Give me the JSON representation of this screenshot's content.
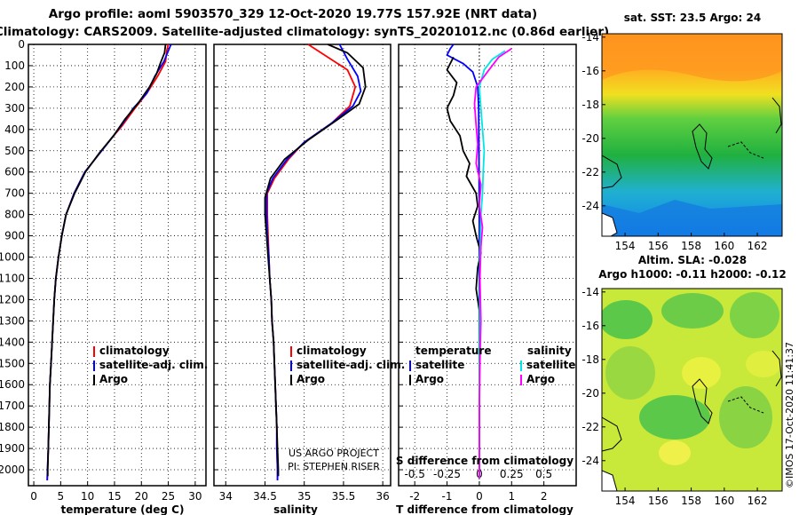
{
  "header": {
    "line1": "Argo profile: aoml 5903570_329 12-Oct-2020 19.77S 157.92E (NRT data)",
    "line2": "Climatology: CARS2009. Satellite-adjusted climatology: synTS_20201012.nc (0.86d earlier)"
  },
  "credit": "©IMOS 17-Oct-2020 11:41:37",
  "project": {
    "line1": "US ARGO PROJECT",
    "line2": "PI: STEPHEN RISER"
  },
  "colors": {
    "climatology": "#ff0000",
    "satellite": "#0000ff",
    "argo": "#000000",
    "sat_salinity": "#00e5e5",
    "argo_salinity": "#ff00ff"
  },
  "chart_data": [
    {
      "type": "line",
      "xlabel": "temperature (deg C)",
      "xticks": [
        "0",
        "5",
        "10",
        "15",
        "20",
        "25",
        "30"
      ],
      "xlim": [
        -1,
        32
      ],
      "ylim": [
        2075,
        0
      ],
      "yticks": [
        "0",
        "100",
        "200",
        "300",
        "400",
        "500",
        "600",
        "700",
        "800",
        "900",
        "1000",
        "1100",
        "1200",
        "1300",
        "1400",
        "1500",
        "1600",
        "1700",
        "1800",
        "1900",
        "2000"
      ],
      "legend": [
        "climatology",
        "satellite-adj. clim.",
        "Argo"
      ],
      "series": [
        {
          "name": "climatology",
          "color": "#ff0000",
          "points": [
            [
              25.0,
              0
            ],
            [
              24.7,
              30
            ],
            [
              24.5,
              80
            ],
            [
              23.0,
              150
            ],
            [
              21.0,
              230
            ],
            [
              18.8,
              300
            ],
            [
              16.5,
              380
            ],
            [
              14.5,
              440
            ],
            [
              12.0,
              520
            ],
            [
              9.5,
              600
            ],
            [
              7.5,
              700
            ],
            [
              6.0,
              800
            ],
            [
              5.2,
              900
            ],
            [
              4.6,
              1000
            ],
            [
              4.1,
              1100
            ],
            [
              3.8,
              1200
            ],
            [
              3.6,
              1300
            ],
            [
              3.4,
              1400
            ],
            [
              3.2,
              1500
            ],
            [
              3.0,
              1600
            ],
            [
              2.9,
              1700
            ],
            [
              2.8,
              1800
            ],
            [
              2.7,
              1900
            ],
            [
              2.55,
              2000
            ],
            [
              2.5,
              2050
            ]
          ]
        },
        {
          "name": "satellite-adj. clim.",
          "color": "#0000ff",
          "points": [
            [
              25.5,
              0
            ],
            [
              25.0,
              30
            ],
            [
              24.2,
              80
            ],
            [
              22.5,
              150
            ],
            [
              21.0,
              230
            ],
            [
              18.5,
              300
            ],
            [
              16.3,
              380
            ],
            [
              14.5,
              440
            ],
            [
              12.0,
              520
            ],
            [
              9.5,
              600
            ],
            [
              7.5,
              700
            ],
            [
              6.0,
              800
            ],
            [
              5.2,
              900
            ],
            [
              4.6,
              1000
            ],
            [
              4.1,
              1100
            ],
            [
              3.8,
              1200
            ],
            [
              3.6,
              1300
            ],
            [
              3.4,
              1400
            ],
            [
              3.2,
              1500
            ],
            [
              3.0,
              1600
            ],
            [
              2.9,
              1700
            ],
            [
              2.8,
              1800
            ],
            [
              2.7,
              1900
            ],
            [
              2.55,
              2000
            ],
            [
              2.5,
              2050
            ]
          ]
        },
        {
          "name": "Argo",
          "color": "#000000",
          "points": [
            [
              24.5,
              0
            ],
            [
              24.3,
              40
            ],
            [
              23.5,
              90
            ],
            [
              22.8,
              140
            ],
            [
              21.5,
              200
            ],
            [
              19.3,
              280
            ],
            [
              17.0,
              350
            ],
            [
              14.8,
              430
            ],
            [
              12.2,
              510
            ],
            [
              9.6,
              600
            ],
            [
              7.6,
              700
            ],
            [
              6.0,
              800
            ],
            [
              5.2,
              900
            ],
            [
              4.6,
              1000
            ],
            [
              4.1,
              1100
            ],
            [
              3.8,
              1200
            ],
            [
              3.6,
              1300
            ],
            [
              3.4,
              1400
            ],
            [
              3.2,
              1500
            ],
            [
              3.0,
              1600
            ],
            [
              2.9,
              1700
            ],
            [
              2.8,
              1800
            ],
            [
              2.7,
              1900
            ],
            [
              2.6,
              2000
            ],
            [
              2.6,
              2030
            ]
          ]
        }
      ]
    },
    {
      "type": "line",
      "xlabel": "salinity",
      "xticks": [
        "34",
        "34.5",
        "35",
        "35.5",
        "36"
      ],
      "xlim": [
        33.85,
        36.1
      ],
      "ylim": [
        2075,
        0
      ],
      "legend": [
        "climatology",
        "satellite-adj. clim.",
        "Argo"
      ],
      "series": [
        {
          "name": "climatology",
          "color": "#ff0000",
          "points": [
            [
              35.05,
              0
            ],
            [
              35.3,
              60
            ],
            [
              35.55,
              120
            ],
            [
              35.65,
              200
            ],
            [
              35.58,
              290
            ],
            [
              35.35,
              370
            ],
            [
              35.0,
              460
            ],
            [
              34.8,
              540
            ],
            [
              34.62,
              630
            ],
            [
              34.53,
              700
            ],
            [
              34.53,
              800
            ],
            [
              34.54,
              900
            ],
            [
              34.55,
              1000
            ],
            [
              34.56,
              1100
            ],
            [
              34.58,
              1200
            ],
            [
              34.59,
              1300
            ],
            [
              34.61,
              1400
            ],
            [
              34.62,
              1500
            ],
            [
              34.63,
              1600
            ],
            [
              34.64,
              1700
            ],
            [
              34.65,
              1800
            ],
            [
              34.65,
              1900
            ],
            [
              34.66,
              2000
            ],
            [
              34.66,
              2050
            ]
          ]
        },
        {
          "name": "satellite-adj. clim.",
          "color": "#0000ff",
          "points": [
            [
              35.45,
              0
            ],
            [
              35.55,
              70
            ],
            [
              35.68,
              150
            ],
            [
              35.72,
              220
            ],
            [
              35.62,
              290
            ],
            [
              35.35,
              370
            ],
            [
              35.0,
              460
            ],
            [
              34.78,
              540
            ],
            [
              34.6,
              630
            ],
            [
              34.52,
              700
            ],
            [
              34.52,
              800
            ],
            [
              34.53,
              900
            ],
            [
              34.55,
              1000
            ],
            [
              34.56,
              1100
            ],
            [
              34.58,
              1200
            ],
            [
              34.59,
              1300
            ],
            [
              34.61,
              1400
            ],
            [
              34.62,
              1500
            ],
            [
              34.63,
              1600
            ],
            [
              34.64,
              1700
            ],
            [
              34.65,
              1800
            ],
            [
              34.65,
              1900
            ],
            [
              34.66,
              2000
            ],
            [
              34.66,
              2050
            ]
          ]
        },
        {
          "name": "Argo",
          "color": "#000000",
          "points": [
            [
              35.3,
              0
            ],
            [
              35.55,
              40
            ],
            [
              35.75,
              110
            ],
            [
              35.78,
              200
            ],
            [
              35.7,
              280
            ],
            [
              35.4,
              360
            ],
            [
              35.05,
              450
            ],
            [
              34.75,
              540
            ],
            [
              34.57,
              630
            ],
            [
              34.5,
              720
            ],
            [
              34.5,
              800
            ],
            [
              34.52,
              900
            ],
            [
              34.54,
              1000
            ],
            [
              34.56,
              1100
            ],
            [
              34.58,
              1200
            ],
            [
              34.59,
              1300
            ],
            [
              34.61,
              1400
            ],
            [
              34.62,
              1500
            ],
            [
              34.63,
              1600
            ],
            [
              34.64,
              1700
            ],
            [
              34.65,
              1800
            ],
            [
              34.66,
              1900
            ],
            [
              34.67,
              2000
            ],
            [
              34.67,
              2030
            ]
          ]
        }
      ]
    },
    {
      "type": "line",
      "xlabel": "T difference from climatology",
      "xlabel2": "S difference from climatology",
      "xticks": [
        "-2",
        "-1",
        "0",
        "1",
        "2"
      ],
      "xticks2": [
        "-0.5",
        "-0.25",
        "0",
        "0.25",
        "0.5"
      ],
      "xlim": [
        -2.5,
        3.0
      ],
      "ylim": [
        2075,
        0
      ],
      "legend_left": [
        "temperature",
        "satellite",
        "Argo"
      ],
      "legend_right": [
        "salinity",
        "satellite",
        "Argo"
      ],
      "series": [
        {
          "name": "satellite",
          "color": "#0000ff",
          "points": [
            [
              -0.8,
              0
            ],
            [
              -0.9,
              20
            ],
            [
              -1.0,
              50
            ],
            [
              -0.5,
              90
            ],
            [
              -0.2,
              130
            ],
            [
              -0.05,
              200
            ],
            [
              -0.02,
              300
            ],
            [
              -0.01,
              500
            ],
            [
              0.0,
              800
            ],
            [
              0.0,
              1200
            ],
            [
              0.0,
              1600
            ],
            [
              0.0,
              2040
            ]
          ]
        },
        {
          "name": "Argo",
          "color": "#000000",
          "points": [
            [
              -0.8,
              60
            ],
            [
              -1.0,
              120
            ],
            [
              -0.7,
              180
            ],
            [
              -0.8,
              240
            ],
            [
              -1.0,
              300
            ],
            [
              -0.9,
              360
            ],
            [
              -0.6,
              430
            ],
            [
              -0.5,
              500
            ],
            [
              -0.3,
              560
            ],
            [
              -0.4,
              620
            ],
            [
              -0.1,
              700
            ],
            [
              -0.05,
              760
            ],
            [
              -0.2,
              830
            ],
            [
              -0.1,
              900
            ],
            [
              0.05,
              980
            ],
            [
              -0.05,
              1050
            ],
            [
              -0.1,
              1150
            ],
            [
              0.0,
              1250
            ],
            [
              0.0,
              1500
            ],
            [
              0.0,
              2030
            ]
          ]
        },
        {
          "name": "satellite",
          "color": "#00e5e5",
          "points": [
            [
              0.8,
              30
            ],
            [
              0.4,
              70
            ],
            [
              0.15,
              120
            ],
            [
              0.0,
              200
            ],
            [
              0.05,
              300
            ],
            [
              0.1,
              400
            ],
            [
              0.15,
              500
            ],
            [
              0.12,
              600
            ],
            [
              0.1,
              700
            ],
            [
              0.05,
              800
            ],
            [
              0.02,
              1000
            ],
            [
              0.01,
              1300
            ],
            [
              0.0,
              1600
            ],
            [
              0.0,
              2040
            ]
          ]
        },
        {
          "name": "Argo",
          "color": "#ff00ff",
          "points": [
            [
              1.0,
              20
            ],
            [
              0.6,
              60
            ],
            [
              0.3,
              120
            ],
            [
              -0.1,
              200
            ],
            [
              -0.15,
              280
            ],
            [
              -0.1,
              380
            ],
            [
              -0.05,
              470
            ],
            [
              -0.1,
              560
            ],
            [
              0.05,
              660
            ],
            [
              0.0,
              760
            ],
            [
              0.1,
              860
            ],
            [
              0.05,
              950
            ],
            [
              0.02,
              1100
            ],
            [
              0.05,
              1300
            ],
            [
              0.02,
              1500
            ],
            [
              0.0,
              1700
            ],
            [
              0.0,
              2040
            ]
          ]
        }
      ]
    }
  ],
  "maps": {
    "sst_title": "sat. SST: 23.5 Argo: 24",
    "sla_title1": "Altim. SLA: -0.028",
    "sla_title2": "Argo h1000: -0.11 h2000: -0.12",
    "lon_ticks": [
      "154",
      "156",
      "158",
      "160",
      "162"
    ],
    "lat_ticks": [
      "-14",
      "-16",
      "-18",
      "-20",
      "-22",
      "-24"
    ]
  }
}
